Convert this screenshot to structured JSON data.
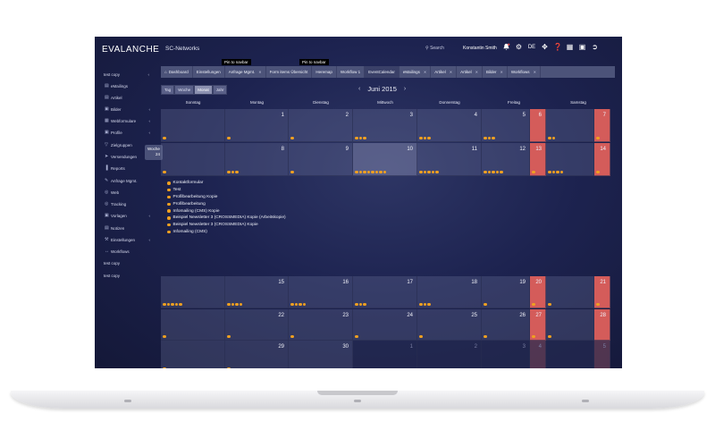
{
  "app": {
    "brand": "EVALANCHE",
    "org": "SC-Networks",
    "search_label": "Search",
    "user_name": "Konstantin Smith",
    "language": "DE",
    "pin_tooltip_1": "Pin to navbar",
    "pin_tooltip_2": "Pin to navbar"
  },
  "topbar_icons": [
    "search-icon",
    "bell-icon",
    "gear-icon",
    "language-label",
    "move-icon",
    "help-icon",
    "grid-icon",
    "window-icon",
    "logout-icon"
  ],
  "sidebar": {
    "items": [
      {
        "label": "test copy",
        "icon": "",
        "chev": "‹"
      },
      {
        "label": "eMailings",
        "icon": "▤",
        "chev": ""
      },
      {
        "label": "Artikel",
        "icon": "▤",
        "chev": ""
      },
      {
        "label": "Bilder",
        "icon": "▣",
        "chev": "‹"
      },
      {
        "label": "Webformulare",
        "icon": "▦",
        "chev": "‹"
      },
      {
        "label": "Profile",
        "icon": "▣",
        "chev": "‹"
      },
      {
        "label": "Zielgruppen",
        "icon": "▽",
        "chev": ""
      },
      {
        "label": "Versendungen",
        "icon": "➤",
        "chev": "‹"
      },
      {
        "label": "Reports",
        "icon": "▐",
        "chev": ""
      },
      {
        "label": "Anfrage Mgmt.",
        "icon": "✎",
        "chev": ""
      },
      {
        "label": "Web",
        "icon": "◎",
        "chev": ""
      },
      {
        "label": "Tracking",
        "icon": "◎",
        "chev": ""
      },
      {
        "label": "Vorlagen",
        "icon": "▣",
        "chev": "‹"
      },
      {
        "label": "Notizen",
        "icon": "▤",
        "chev": ""
      },
      {
        "label": "Einstellungen",
        "icon": "⚒",
        "chev": "‹"
      },
      {
        "label": "Workflows",
        "icon": "↔",
        "chev": ""
      },
      {
        "label": "test copy",
        "icon": "",
        "chev": ""
      },
      {
        "label": "test copy",
        "icon": "",
        "chev": ""
      }
    ],
    "flyout": {
      "label": "Woche",
      "value": "24"
    }
  },
  "tabs": [
    {
      "label": "Dashboard",
      "icon": "⌂",
      "close": false
    },
    {
      "label": "Einstellungen",
      "close": false
    },
    {
      "label": "Anfrage Mgmt.",
      "close": true
    },
    {
      "label": "Form items Übersicht",
      "close": false
    },
    {
      "label": "Heremap",
      "close": false
    },
    {
      "label": "Workflow 1",
      "close": false
    },
    {
      "label": "EventCalendar",
      "close": false,
      "active": true
    },
    {
      "label": "eMailings",
      "close": true
    },
    {
      "label": "Artikel",
      "close": true
    },
    {
      "label": "Artikel",
      "close": true
    },
    {
      "label": "Bilder",
      "close": true
    },
    {
      "label": "Workflows",
      "close": true
    }
  ],
  "views": [
    {
      "label": "Tag",
      "active": false
    },
    {
      "label": "Woche",
      "active": false
    },
    {
      "label": "Monat",
      "active": true
    },
    {
      "label": "Jahr",
      "active": false
    }
  ],
  "calendar": {
    "month_label": "Juni 2015",
    "prev": "‹",
    "next": "›",
    "days": [
      "Sonntag",
      "Montag",
      "Dienstag",
      "Mittwoch",
      "Donnerstag",
      "Freitag",
      "Samstag"
    ],
    "weeks": [
      [
        {
          "n": "",
          "d": 1
        },
        {
          "n": "1",
          "d": 1
        },
        {
          "n": "2",
          "d": 1
        },
        {
          "n": "3",
          "d": 3
        },
        {
          "n": "4",
          "d": 3
        },
        {
          "n": "5",
          "d": 3
        },
        {
          "n": "6",
          "d": 0
        },
        {
          "n": "",
          "d": 2
        },
        {
          "n": "7",
          "d": 1
        }
      ],
      [
        {
          "n": "",
          "d": 1
        },
        {
          "n": "8",
          "d": 3
        },
        {
          "n": "9",
          "d": 1
        },
        {
          "n": "10",
          "d": 8
        },
        {
          "n": "11",
          "d": 5
        },
        {
          "n": "12",
          "d": 5
        },
        {
          "n": "13",
          "d": 1
        },
        {
          "n": "",
          "d": 4
        },
        {
          "n": "14",
          "d": 1
        }
      ],
      [
        {
          "n": "",
          "d": 5
        },
        {
          "n": "15",
          "d": 4
        },
        {
          "n": "16",
          "d": 4
        },
        {
          "n": "17",
          "d": 3
        },
        {
          "n": "18",
          "d": 3
        },
        {
          "n": "19",
          "d": 1
        },
        {
          "n": "20",
          "d": 1
        },
        {
          "n": "",
          "d": 1
        },
        {
          "n": "21",
          "d": 1
        }
      ],
      [
        {
          "n": "",
          "d": 1
        },
        {
          "n": "22",
          "d": 1
        },
        {
          "n": "23",
          "d": 1
        },
        {
          "n": "24",
          "d": 1
        },
        {
          "n": "25",
          "d": 1
        },
        {
          "n": "26",
          "d": 1
        },
        {
          "n": "27",
          "d": 1
        },
        {
          "n": "",
          "d": 1
        },
        {
          "n": "28",
          "d": 0
        }
      ],
      [
        {
          "n": "",
          "d": 1
        },
        {
          "n": "29",
          "d": 1
        },
        {
          "n": "30",
          "d": 0
        },
        {
          "n": "1",
          "d": 0
        },
        {
          "n": "2",
          "d": 0
        },
        {
          "n": "3",
          "d": 0
        },
        {
          "n": "4",
          "d": 0
        },
        {
          "n": "",
          "d": 0
        },
        {
          "n": "5",
          "d": 0
        }
      ]
    ],
    "events": [
      "Kontaktformular",
      "Test",
      "Profilbearbeitung Kopie",
      "Profilbearbeitung",
      "Infomailing (CMS) Kopie",
      "Beispiel Newsletter 3 (CROSSMEDIA) Kopie (Arbeitskopie)",
      "Beispiel Newsletter 3 (CROSSMEDIA) Kopie",
      "Infomailing (CMS)"
    ]
  },
  "colors": {
    "accent": "#f0a020",
    "weekend": "#d45c5a",
    "bg": "#1d2350"
  }
}
